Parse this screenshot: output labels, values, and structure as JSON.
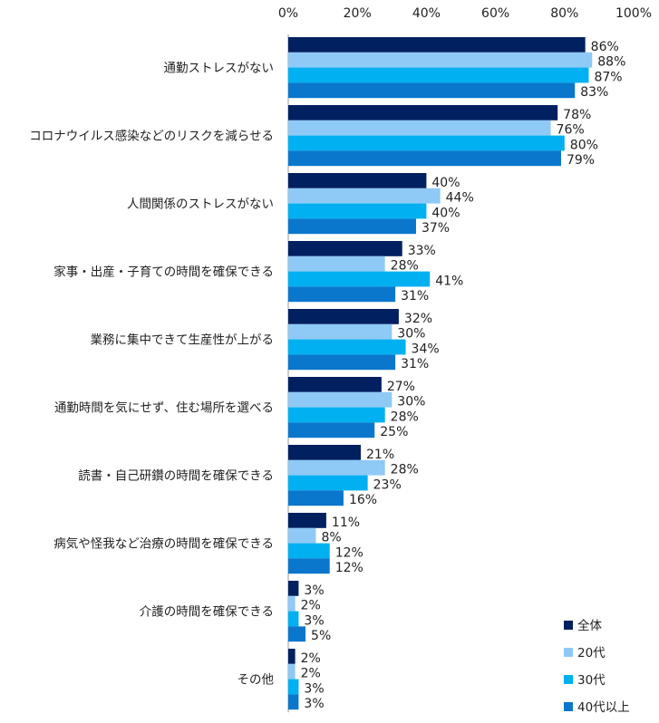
{
  "chart_data": {
    "type": "bar",
    "orientation": "horizontal",
    "categories": [
      "通勤ストレスがない",
      "コロナウイルス感染などのリスクを減らせる",
      "人間関係のストレスがない",
      "家事・出産・子育ての時間を確保できる",
      "業務に集中できて生産性が上がる",
      "通勤時間を気にせず、住む場所を選べる",
      "読書・自己研鑽の時間を確保できる",
      "病気や怪我など治療の時間を確保できる",
      "介護の時間を確保できる",
      "その他"
    ],
    "series": [
      {
        "name": "全体",
        "color": "#002060",
        "values": [
          86,
          78,
          40,
          33,
          32,
          27,
          21,
          11,
          3,
          2
        ]
      },
      {
        "name": "20代",
        "color": "#8FC9F5",
        "values": [
          88,
          76,
          44,
          28,
          30,
          30,
          28,
          8,
          2,
          2
        ]
      },
      {
        "name": "30代",
        "color": "#00B0F0",
        "values": [
          87,
          80,
          40,
          41,
          34,
          28,
          23,
          12,
          3,
          3
        ]
      },
      {
        "name": "40代以上",
        "color": "#0B77CC",
        "values": [
          83,
          79,
          37,
          31,
          31,
          25,
          16,
          12,
          5,
          3
        ]
      }
    ],
    "xticks": [
      "0%",
      "20%",
      "40%",
      "60%",
      "80%",
      "100%"
    ],
    "xlim": [
      0,
      100
    ],
    "value_suffix": "%",
    "axis_position": "top",
    "grid": false,
    "legend_position": "bottom-right"
  }
}
